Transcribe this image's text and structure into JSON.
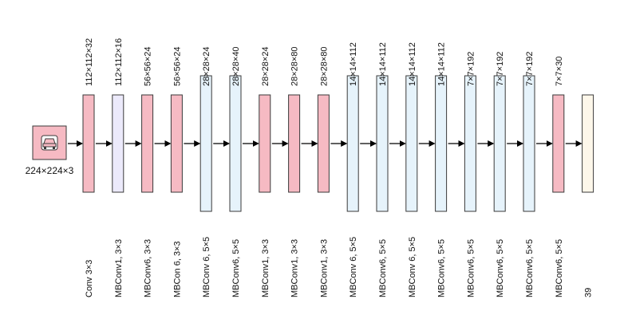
{
  "input": {
    "label": "224×224×3",
    "icon": "car-icon",
    "color": "#F6BAC3"
  },
  "colors": {
    "pink": "#F6BAC3",
    "lavender": "#ECEAFB",
    "blue": "#E6F3FB",
    "cream": "#FDF7EA",
    "stroke": "#3a3a3a"
  },
  "layers": [
    {
      "dim": "112×112×32",
      "op": "Conv 3×3",
      "kind": "pink",
      "size": "small"
    },
    {
      "dim": "112×112×16",
      "op": "MBConv1, 3×3",
      "kind": "lavender",
      "size": "small"
    },
    {
      "dim": "56×56×24",
      "op": "MBConv6, 3×3",
      "kind": "pink",
      "size": "small"
    },
    {
      "dim": "56×56×24",
      "op": "MBCon 6, 3×3",
      "kind": "pink",
      "size": "small"
    },
    {
      "dim": "28×28×24",
      "op": "MBConv 6, 5×5",
      "kind": "blue",
      "size": "large"
    },
    {
      "dim": "28×28×40",
      "op": "MBConv6, 5×5",
      "kind": "blue",
      "size": "large"
    },
    {
      "dim": "28×28×24",
      "op": "MBConv1, 3×3",
      "kind": "pink",
      "size": "small"
    },
    {
      "dim": "28×28×80",
      "op": "MBConv1, 3×3",
      "kind": "pink",
      "size": "small"
    },
    {
      "dim": "28×28×80",
      "op": "MBConv1, 3×3",
      "kind": "pink",
      "size": "small"
    },
    {
      "dim": "14×14×112",
      "op": "MBConv 6, 5×5",
      "kind": "blue",
      "size": "large"
    },
    {
      "dim": "14×14×112",
      "op": "MBConv6, 5×5",
      "kind": "blue",
      "size": "large"
    },
    {
      "dim": "14×14×112",
      "op": "MBConv 6, 5×5",
      "kind": "blue",
      "size": "large"
    },
    {
      "dim": "14×14×112",
      "op": "MBConv6, 5×5",
      "kind": "blue",
      "size": "large"
    },
    {
      "dim": "7×7×192",
      "op": "MBConv6, 5×5",
      "kind": "blue",
      "size": "large"
    },
    {
      "dim": "7×7×192",
      "op": "MBConv6, 5×5",
      "kind": "blue",
      "size": "large"
    },
    {
      "dim": "7×7×192",
      "op": "MBConv6, 5×5",
      "kind": "blue",
      "size": "large"
    },
    {
      "dim": "7×7×30",
      "op": "MBConv6, 5×5",
      "kind": "pink",
      "size": "small"
    },
    {
      "dim": "",
      "op": "39",
      "kind": "cream",
      "size": "small"
    }
  ]
}
